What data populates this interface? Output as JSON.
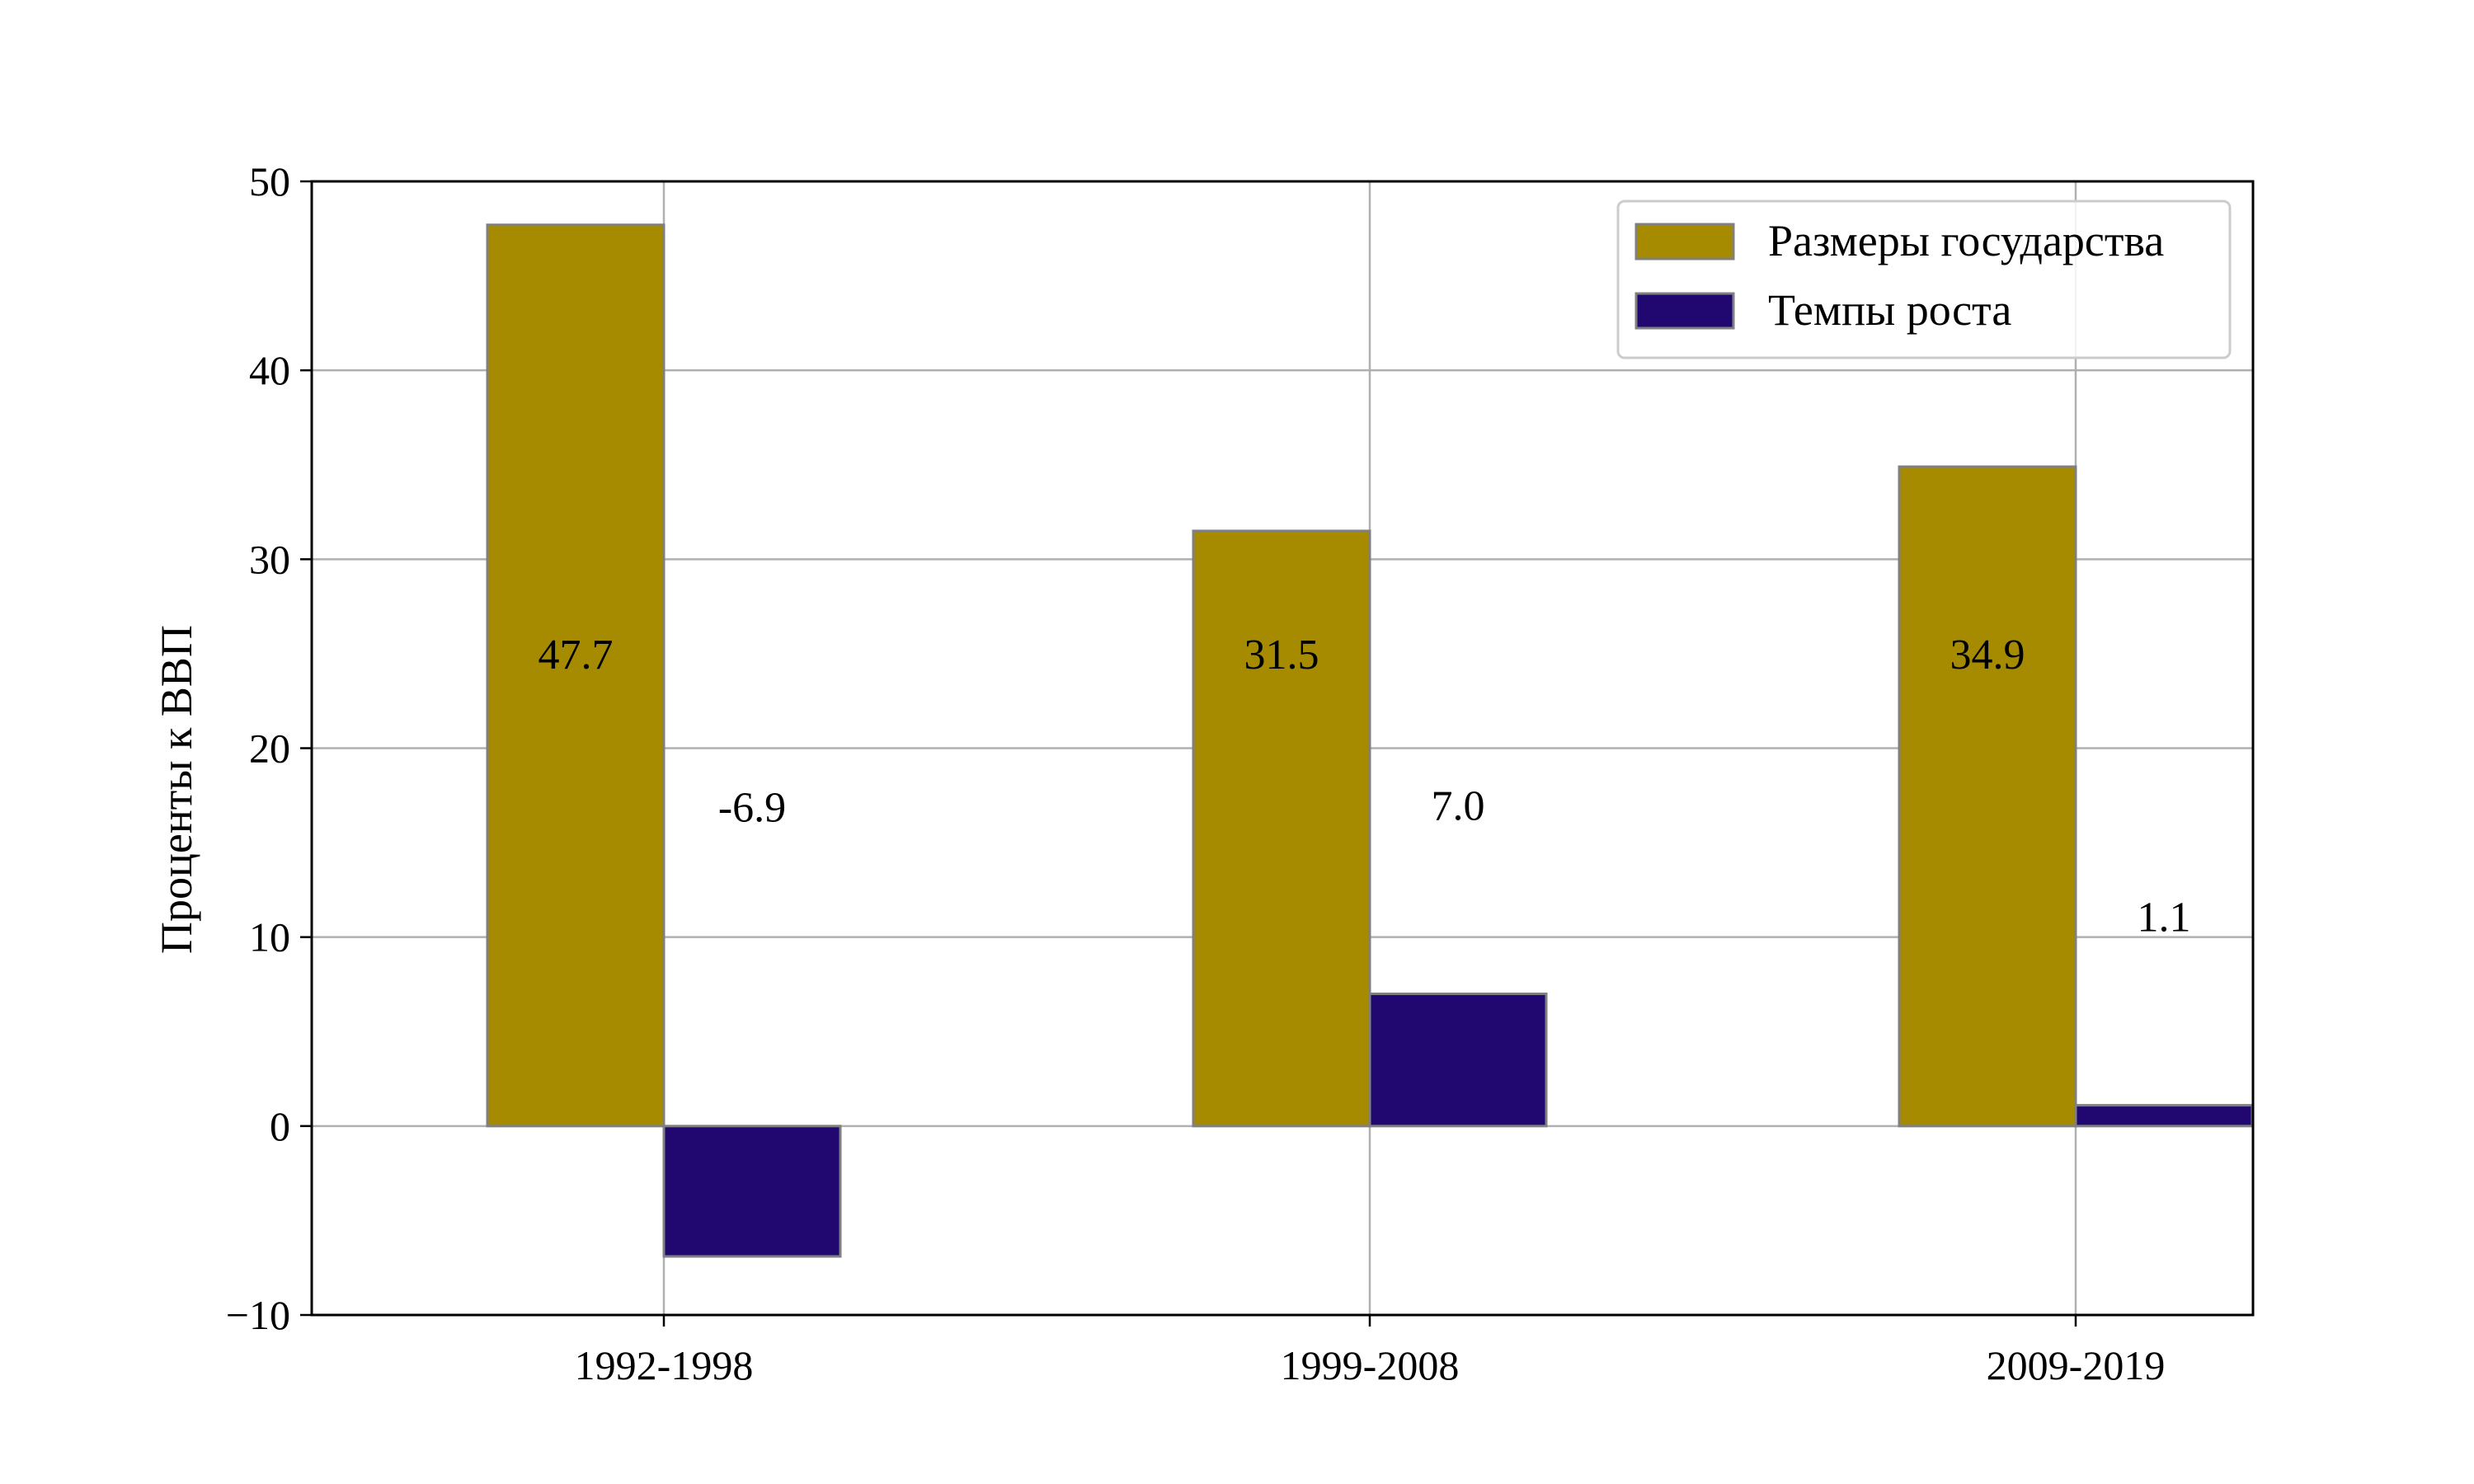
{
  "chart_data": {
    "type": "bar",
    "categories": [
      "1992-1998",
      "1999-2008",
      "2009-2019"
    ],
    "series": [
      {
        "name": "Размеры государства",
        "values": [
          47.7,
          31.5,
          34.9
        ],
        "color": "#a68a00",
        "labels": [
          "47.7",
          "31.5",
          "34.9"
        ]
      },
      {
        "name": "Темпы роста",
        "values": [
          -6.9,
          7.0,
          1.1
        ],
        "color": "#200870",
        "labels": [
          "-6.9",
          "7.0",
          "1.1"
        ]
      }
    ],
    "xlabel": "",
    "ylabel": "Проценты к ВВП",
    "ylim": [
      -10,
      50
    ],
    "yticks": [
      -10,
      0,
      10,
      20,
      30,
      40,
      50
    ],
    "ytick_labels": [
      "−10",
      "0",
      "10",
      "20",
      "30",
      "40",
      "50"
    ],
    "grid": true,
    "legend_position": "upper-right",
    "bar_edge_color": "#808080"
  }
}
